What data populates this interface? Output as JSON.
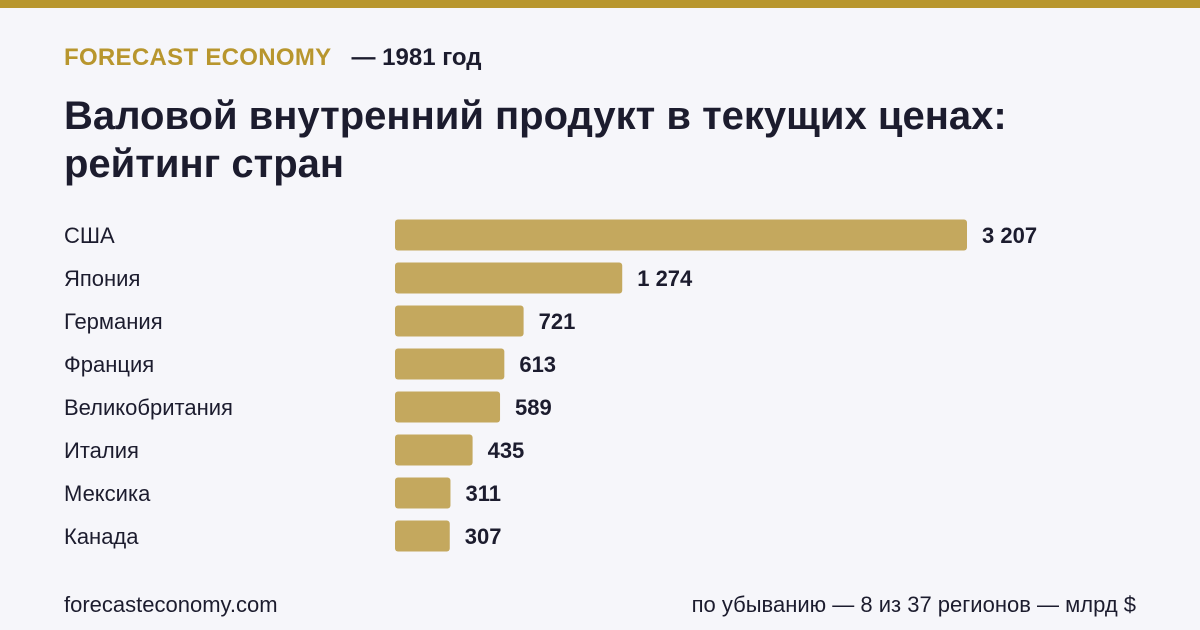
{
  "brand": "FORECAST ECONOMY",
  "year_label": "— 1981 год",
  "title": "Валовой внутренний продукт в текущих ценах: рейтинг стран",
  "footer": {
    "site": "forecasteconomy.com",
    "note": "по убыванию — 8 из 37 регионов — млрд $"
  },
  "colors": {
    "accent": "#b8962e",
    "bar": "#c4a85e",
    "background": "#f6f6fa",
    "text": "#1c1c2e"
  },
  "chart_data": {
    "type": "bar",
    "orientation": "horizontal",
    "categories": [
      "США",
      "Япония",
      "Германия",
      "Франция",
      "Великобритания",
      "Италия",
      "Мексика",
      "Канада"
    ],
    "values": [
      3207,
      1274,
      721,
      613,
      589,
      435,
      311,
      307
    ],
    "value_labels": [
      "3 207",
      "1 274",
      "721",
      "613",
      "589",
      "435",
      "311",
      "307"
    ],
    "title": "Валовой внутренний продукт в текущих ценах: рейтинг стран",
    "xlabel": "",
    "ylabel": "",
    "grid": false
  }
}
